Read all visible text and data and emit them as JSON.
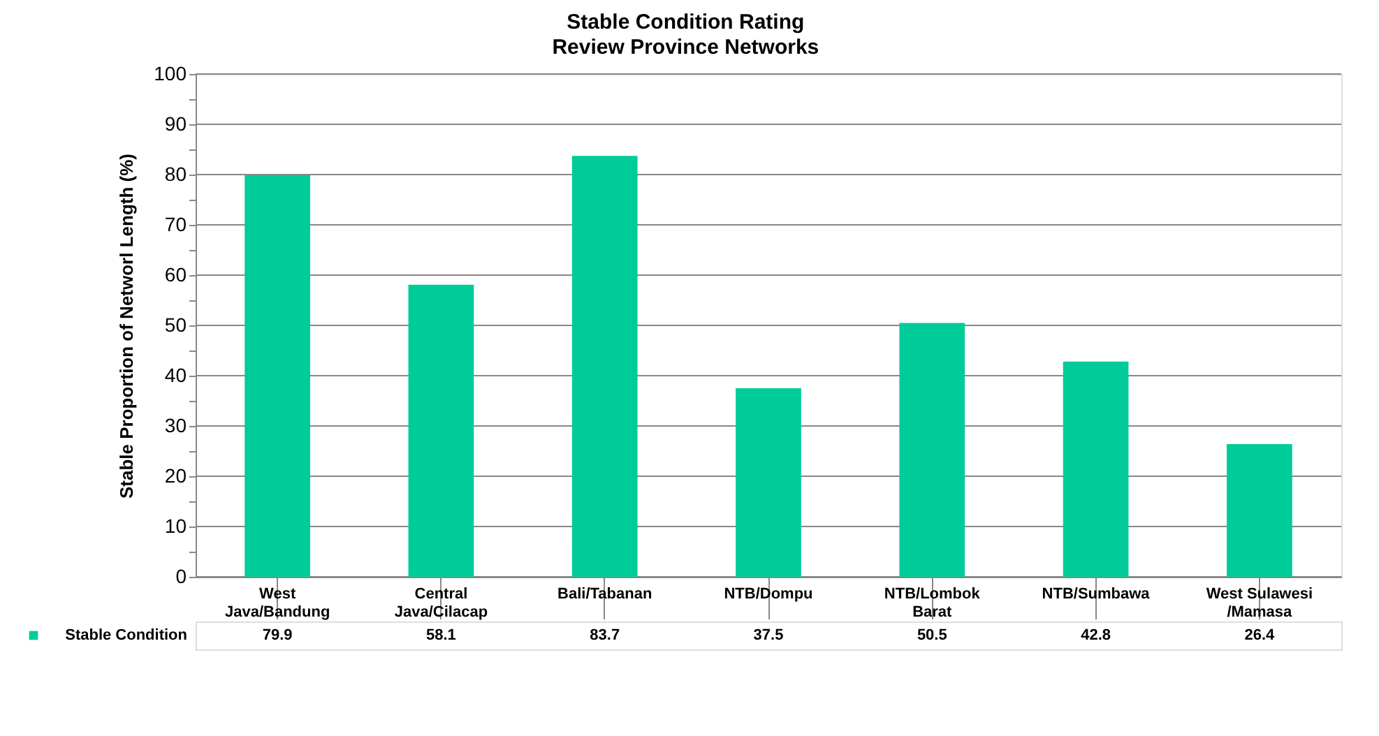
{
  "chart_data": {
    "type": "bar",
    "title": "Stable Condition Rating",
    "subtitle": "Review Province Networks",
    "ylabel": "Stable Proportion of Networl Length (%)",
    "categories": [
      "West Java/Bandung",
      "Central Java/Cilacap",
      "Bali/Tabanan",
      "NTB/Dompu",
      "NTB/Lombok Barat",
      "NTB/Sumbawa",
      "West Sulawesi /Mamasa"
    ],
    "series": [
      {
        "name": "Stable Condition",
        "color": "#00cc99",
        "values": [
          79.9,
          58.1,
          83.7,
          37.5,
          50.5,
          42.8,
          26.4
        ]
      }
    ],
    "ylim": [
      0,
      100
    ],
    "yticks": [
      0,
      {
        "value": 5,
        "label": null
      },
      10,
      {
        "value": 15,
        "label": null
      },
      20,
      {
        "value": 25,
        "label": null
      },
      30,
      {
        "value": 35,
        "label": null
      },
      40,
      {
        "value": 45,
        "label": null
      },
      50,
      {
        "value": 55,
        "label": null
      },
      60,
      {
        "value": 65,
        "label": null
      },
      70,
      {
        "value": 75,
        "label": null
      },
      80,
      {
        "value": 85,
        "label": null
      },
      90,
      {
        "value": 95,
        "label": null
      },
      100
    ],
    "grid": "y",
    "legend": "bottom left",
    "data_labels": true
  }
}
